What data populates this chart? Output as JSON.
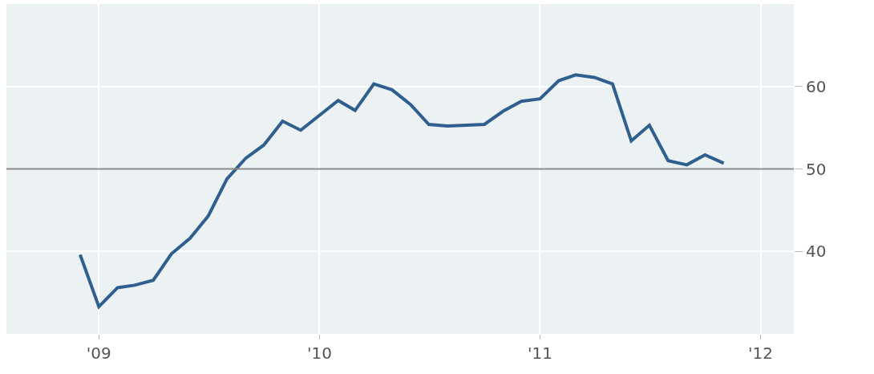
{
  "chart_data": {
    "type": "line",
    "x": [
      "2008-12",
      "2009-01",
      "2009-02",
      "2009-03",
      "2009-04",
      "2009-05",
      "2009-06",
      "2009-07",
      "2009-08",
      "2009-09",
      "2009-10",
      "2009-11",
      "2009-12",
      "2010-01",
      "2010-02",
      "2010-03",
      "2010-04",
      "2010-05",
      "2010-06",
      "2010-07",
      "2010-08",
      "2010-09",
      "2010-10",
      "2010-11",
      "2010-12",
      "2011-01",
      "2011-02",
      "2011-03",
      "2011-04",
      "2011-05",
      "2011-06",
      "2011-07",
      "2011-08",
      "2011-09",
      "2011-10",
      "2011-11"
    ],
    "series": [
      {
        "color": "#2e5f8e",
        "values": [
          39.6,
          33.3,
          35.6,
          35.9,
          36.5,
          39.7,
          41.6,
          44.3,
          48.8,
          51.3,
          52.9,
          55.8,
          54.7,
          56.5,
          58.3,
          57.1,
          60.3,
          59.6,
          57.8,
          55.4,
          55.2,
          55.3,
          55.4,
          57.0,
          58.2,
          58.5,
          60.7,
          61.4,
          61.1,
          60.3,
          53.4,
          55.3,
          51.0,
          50.5,
          51.7,
          50.7
        ]
      }
    ],
    "xlim": [
      "2008-08-01",
      "2012-02-25"
    ],
    "xticks": [
      {
        "value": "2009-01-01",
        "label": "'09"
      },
      {
        "value": "2010-01-01",
        "label": "'10"
      },
      {
        "value": "2011-01-01",
        "label": "'11"
      },
      {
        "value": "2012-01-01",
        "label": "'12"
      }
    ],
    "ylim": [
      30,
      70
    ],
    "yticks": [
      40,
      50,
      60
    ],
    "ref_lines": [
      {
        "axis": "y",
        "value": 50,
        "color": "#888888"
      }
    ],
    "grid": true,
    "marker": "none",
    "line_style": "solid"
  }
}
